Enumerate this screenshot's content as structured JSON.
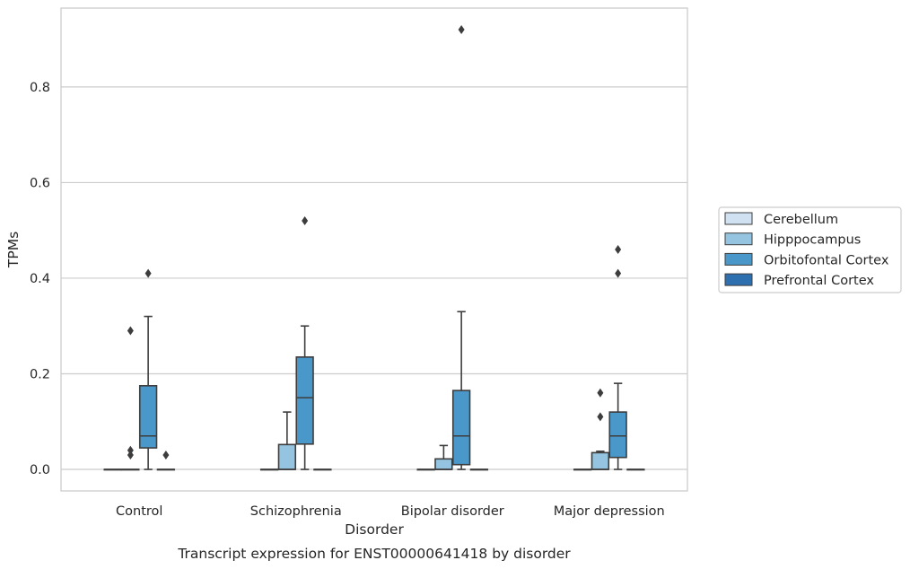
{
  "chart_data": {
    "type": "box",
    "xlabel": "Disorder",
    "ylabel": "TPMs",
    "caption": "Transcript expression for ENST00000641418 by disorder",
    "ylim": [
      -0.045,
      0.965
    ],
    "yticks": [
      0.0,
      0.2,
      0.4,
      0.6,
      0.8
    ],
    "ytick_labels": [
      "0.0",
      "0.2",
      "0.4",
      "0.6",
      "0.8"
    ],
    "grid": "horizontal",
    "legend_position": "right",
    "categories": [
      "Control",
      "Schizophrenia",
      "Bipolar disorder",
      "Major depression"
    ],
    "series": [
      {
        "name": "Cerebellum",
        "color": "#d0e1f2",
        "boxes": [
          {
            "q1": 0.0,
            "median": 0.0,
            "q3": 0.0,
            "whisker_low": 0.0,
            "whisker_high": 0.0,
            "outliers": []
          },
          {
            "q1": 0.0,
            "median": 0.0,
            "q3": 0.0,
            "whisker_low": 0.0,
            "whisker_high": 0.0,
            "outliers": []
          },
          {
            "q1": 0.0,
            "median": 0.0,
            "q3": 0.0,
            "whisker_low": 0.0,
            "whisker_high": 0.0,
            "outliers": []
          },
          {
            "q1": 0.0,
            "median": 0.0,
            "q3": 0.0,
            "whisker_low": 0.0,
            "whisker_high": 0.0,
            "outliers": []
          }
        ]
      },
      {
        "name": "Hipppocampus",
        "color": "#94c4df",
        "boxes": [
          {
            "q1": 0.0,
            "median": 0.0,
            "q3": 0.0,
            "whisker_low": 0.0,
            "whisker_high": 0.0,
            "outliers": [
              0.03,
              0.04,
              0.29
            ]
          },
          {
            "q1": 0.0,
            "median": 0.0,
            "q3": 0.052,
            "whisker_low": 0.0,
            "whisker_high": 0.12,
            "outliers": []
          },
          {
            "q1": 0.0,
            "median": 0.0,
            "q3": 0.022,
            "whisker_low": 0.0,
            "whisker_high": 0.05,
            "outliers": []
          },
          {
            "q1": 0.0,
            "median": 0.0,
            "q3": 0.035,
            "whisker_low": 0.0,
            "whisker_high": 0.038,
            "outliers": [
              0.11,
              0.16
            ]
          }
        ]
      },
      {
        "name": "Orbitofontal Cortex",
        "color": "#4a98c9",
        "boxes": [
          {
            "q1": 0.045,
            "median": 0.07,
            "q3": 0.175,
            "whisker_low": 0.0,
            "whisker_high": 0.32,
            "outliers": [
              0.41
            ]
          },
          {
            "q1": 0.053,
            "median": 0.15,
            "q3": 0.235,
            "whisker_low": 0.0,
            "whisker_high": 0.3,
            "outliers": [
              0.52
            ]
          },
          {
            "q1": 0.01,
            "median": 0.07,
            "q3": 0.165,
            "whisker_low": 0.0,
            "whisker_high": 0.33,
            "outliers": [
              0.92
            ]
          },
          {
            "q1": 0.025,
            "median": 0.07,
            "q3": 0.12,
            "whisker_low": 0.0,
            "whisker_high": 0.18,
            "outliers": [
              0.41,
              0.46
            ]
          }
        ]
      },
      {
        "name": "Prefrontal Cortex",
        "color": "#2e6fb0",
        "boxes": [
          {
            "q1": 0.0,
            "median": 0.0,
            "q3": 0.0,
            "whisker_low": 0.0,
            "whisker_high": 0.0,
            "outliers": [
              0.03
            ]
          },
          {
            "q1": 0.0,
            "median": 0.0,
            "q3": 0.0,
            "whisker_low": 0.0,
            "whisker_high": 0.0,
            "outliers": []
          },
          {
            "q1": 0.0,
            "median": 0.0,
            "q3": 0.0,
            "whisker_low": 0.0,
            "whisker_high": 0.0,
            "outliers": []
          },
          {
            "q1": 0.0,
            "median": 0.0,
            "q3": 0.0,
            "whisker_low": 0.0,
            "whisker_high": 0.0,
            "outliers": []
          }
        ]
      }
    ]
  }
}
